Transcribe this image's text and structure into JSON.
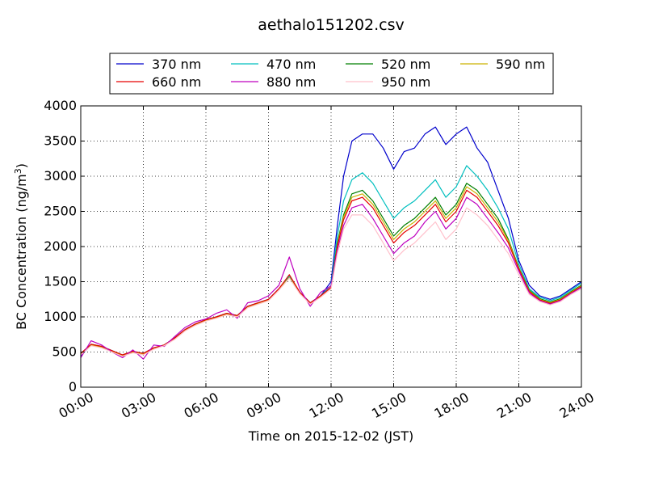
{
  "chart_data": {
    "type": "line",
    "title": "aethalo151202.csv",
    "xlabel": "Time on 2015-12-02 (JST)",
    "ylabel": "BC Concentration (ng/m",
    "ylabel_sup": "3",
    "ylabel_end": ")",
    "xlim_hours": [
      0,
      24
    ],
    "ylim": [
      0,
      4000
    ],
    "x_ticks": [
      {
        "hours": 0,
        "label": "00:00"
      },
      {
        "hours": 3,
        "label": "03:00"
      },
      {
        "hours": 6,
        "label": "06:00"
      },
      {
        "hours": 9,
        "label": "09:00"
      },
      {
        "hours": 12,
        "label": "12:00"
      },
      {
        "hours": 15,
        "label": "15:00"
      },
      {
        "hours": 18,
        "label": "18:00"
      },
      {
        "hours": 21,
        "label": "21:00"
      },
      {
        "hours": 24,
        "label": "24:00"
      }
    ],
    "y_ticks": [
      0,
      500,
      1000,
      1500,
      2000,
      2500,
      3000,
      3500,
      4000
    ],
    "grid": true,
    "legend_position": "top",
    "series": [
      {
        "name": "370 nm",
        "color": "#0000cc",
        "hours": [
          0,
          0.5,
          1,
          1.5,
          2,
          2.5,
          3,
          3.5,
          4,
          4.5,
          5,
          5.5,
          6,
          6.5,
          7,
          7.5,
          8,
          8.5,
          9,
          9.5,
          10,
          10.5,
          11,
          11.5,
          12,
          12.3,
          12.6,
          13,
          13.5,
          14,
          14.5,
          15,
          15.5,
          16,
          16.5,
          17,
          17.5,
          18,
          18.5,
          19,
          19.5,
          20,
          20.5,
          21,
          21.5,
          22,
          22.5,
          23,
          23.5,
          24
        ],
        "values": [
          450,
          600,
          580,
          520,
          450,
          500,
          480,
          560,
          600,
          700,
          820,
          900,
          960,
          1000,
          1050,
          1020,
          1150,
          1200,
          1250,
          1400,
          1580,
          1350,
          1200,
          1300,
          1500,
          2300,
          3000,
          3500,
          3600,
          3600,
          3400,
          3100,
          3350,
          3400,
          3600,
          3700,
          3450,
          3600,
          3700,
          3400,
          3200,
          2800,
          2400,
          1800,
          1450,
          1300,
          1250,
          1300,
          1400,
          1500
        ]
      },
      {
        "name": "470 nm",
        "color": "#00bfbf",
        "hours": [
          0,
          0.5,
          1,
          1.5,
          2,
          2.5,
          3,
          3.5,
          4,
          4.5,
          5,
          5.5,
          6,
          6.5,
          7,
          7.5,
          8,
          8.5,
          9,
          9.5,
          10,
          10.5,
          11,
          11.5,
          12,
          12.3,
          12.6,
          13,
          13.5,
          14,
          14.5,
          15,
          15.5,
          16,
          16.5,
          17,
          17.5,
          18,
          18.5,
          19,
          19.5,
          20,
          20.5,
          21,
          21.5,
          22,
          22.5,
          23,
          23.5,
          24
        ],
        "values": [
          480,
          610,
          580,
          520,
          460,
          510,
          480,
          550,
          600,
          700,
          820,
          900,
          960,
          1000,
          1050,
          1020,
          1150,
          1200,
          1250,
          1400,
          1580,
          1350,
          1200,
          1300,
          1450,
          2150,
          2650,
          2950,
          3050,
          2900,
          2650,
          2400,
          2550,
          2650,
          2800,
          2950,
          2700,
          2850,
          3150,
          3000,
          2800,
          2550,
          2250,
          1750,
          1400,
          1280,
          1230,
          1280,
          1380,
          1480
        ]
      },
      {
        "name": "520 nm",
        "color": "#007f00",
        "hours": [
          0,
          0.5,
          1,
          1.5,
          2,
          2.5,
          3,
          3.5,
          4,
          4.5,
          5,
          5.5,
          6,
          6.5,
          7,
          7.5,
          8,
          8.5,
          9,
          9.5,
          10,
          10.5,
          11,
          11.5,
          12,
          12.3,
          12.6,
          13,
          13.5,
          14,
          14.5,
          15,
          15.5,
          16,
          16.5,
          17,
          17.5,
          18,
          18.5,
          19,
          19.5,
          20,
          20.5,
          21,
          21.5,
          22,
          22.5,
          23,
          23.5,
          24
        ],
        "values": [
          470,
          600,
          570,
          510,
          450,
          500,
          470,
          550,
          600,
          690,
          810,
          890,
          950,
          990,
          1040,
          1010,
          1140,
          1190,
          1240,
          1390,
          1560,
          1340,
          1190,
          1290,
          1420,
          2050,
          2450,
          2750,
          2800,
          2650,
          2400,
          2150,
          2300,
          2400,
          2550,
          2700,
          2450,
          2600,
          2900,
          2800,
          2600,
          2400,
          2100,
          1700,
          1380,
          1260,
          1210,
          1260,
          1360,
          1450
        ]
      },
      {
        "name": "590 nm",
        "color": "#ccb200",
        "hours": [
          0,
          0.5,
          1,
          1.5,
          2,
          2.5,
          3,
          3.5,
          4,
          4.5,
          5,
          5.5,
          6,
          6.5,
          7,
          7.5,
          8,
          8.5,
          9,
          9.5,
          10,
          10.5,
          11,
          11.5,
          12,
          12.3,
          12.6,
          13,
          13.5,
          14,
          14.5,
          15,
          15.5,
          16,
          16.5,
          17,
          17.5,
          18,
          18.5,
          19,
          19.5,
          20,
          20.5,
          21,
          21.5,
          22,
          22.5,
          23,
          23.5,
          24
        ],
        "values": [
          470,
          600,
          570,
          510,
          450,
          500,
          470,
          550,
          600,
          690,
          810,
          890,
          950,
          990,
          1040,
          1010,
          1140,
          1190,
          1240,
          1390,
          1560,
          1340,
          1190,
          1290,
          1410,
          2020,
          2420,
          2700,
          2750,
          2600,
          2350,
          2100,
          2250,
          2350,
          2500,
          2650,
          2400,
          2550,
          2850,
          2750,
          2550,
          2350,
          2080,
          1690,
          1370,
          1250,
          1200,
          1250,
          1350,
          1440
        ]
      },
      {
        "name": "660 nm",
        "color": "#e60000",
        "hours": [
          0,
          0.5,
          1,
          1.5,
          2,
          2.5,
          3,
          3.5,
          4,
          4.5,
          5,
          5.5,
          6,
          6.5,
          7,
          7.5,
          8,
          8.5,
          9,
          9.5,
          10,
          10.5,
          11,
          11.5,
          12,
          12.3,
          12.6,
          13,
          13.5,
          14,
          14.5,
          15,
          15.5,
          16,
          16.5,
          17,
          17.5,
          18,
          18.5,
          19,
          19.5,
          20,
          20.5,
          21,
          21.5,
          22,
          22.5,
          23,
          23.5,
          24
        ],
        "values": [
          480,
          610,
          580,
          520,
          460,
          510,
          480,
          560,
          600,
          700,
          820,
          900,
          960,
          1000,
          1050,
          1020,
          1150,
          1200,
          1250,
          1400,
          1600,
          1350,
          1200,
          1300,
          1420,
          2000,
          2380,
          2650,
          2700,
          2550,
          2300,
          2050,
          2200,
          2300,
          2450,
          2600,
          2350,
          2500,
          2800,
          2700,
          2500,
          2300,
          2050,
          1680,
          1360,
          1240,
          1190,
          1240,
          1340,
          1430
        ]
      },
      {
        "name": "880 nm",
        "color": "#bf00bf",
        "hours": [
          0,
          0.5,
          1,
          1.5,
          2,
          2.5,
          3,
          3.5,
          4,
          4.5,
          5,
          5.5,
          6,
          6.5,
          7,
          7.5,
          8,
          8.5,
          9,
          9.5,
          10,
          10.5,
          11,
          11.5,
          12,
          12.3,
          12.6,
          13,
          13.5,
          14,
          14.5,
          15,
          15.5,
          16,
          16.5,
          17,
          17.5,
          18,
          18.5,
          19,
          19.5,
          20,
          20.5,
          21,
          21.5,
          22,
          22.5,
          23,
          23.5,
          24
        ],
        "values": [
          420,
          660,
          600,
          500,
          420,
          530,
          400,
          600,
          580,
          720,
          850,
          930,
          970,
          1050,
          1100,
          980,
          1200,
          1230,
          1300,
          1450,
          1850,
          1400,
          1150,
          1350,
          1440,
          1950,
          2300,
          2550,
          2600,
          2400,
          2150,
          1900,
          2050,
          2150,
          2350,
          2500,
          2250,
          2400,
          2700,
          2600,
          2400,
          2200,
          1980,
          1650,
          1340,
          1230,
          1180,
          1230,
          1330,
          1420
        ]
      },
      {
        "name": "950 nm",
        "color": "#ffc0cb",
        "hours": [
          0,
          0.5,
          1,
          1.5,
          2,
          2.5,
          3,
          3.5,
          4,
          4.5,
          5,
          5.5,
          6,
          6.5,
          7,
          7.5,
          8,
          8.5,
          9,
          9.5,
          10,
          10.5,
          11,
          11.5,
          12,
          12.3,
          12.6,
          13,
          13.5,
          14,
          14.5,
          15,
          15.5,
          16,
          16.5,
          17,
          17.5,
          18,
          18.5,
          19,
          19.5,
          20,
          20.5,
          21,
          21.5,
          22,
          22.5,
          23,
          23.5,
          24
        ],
        "values": [
          460,
          590,
          560,
          500,
          440,
          490,
          460,
          540,
          590,
          680,
          800,
          880,
          940,
          980,
          1030,
          1000,
          1130,
          1180,
          1230,
          1380,
          1550,
          1330,
          1180,
          1280,
          1400,
          1900,
          2250,
          2450,
          2450,
          2300,
          2050,
          1800,
          1950,
          2050,
          2200,
          2350,
          2100,
          2250,
          2550,
          2450,
          2300,
          2100,
          1900,
          1600,
          1320,
          1220,
          1170,
          1220,
          1320,
          1400
        ]
      }
    ]
  }
}
